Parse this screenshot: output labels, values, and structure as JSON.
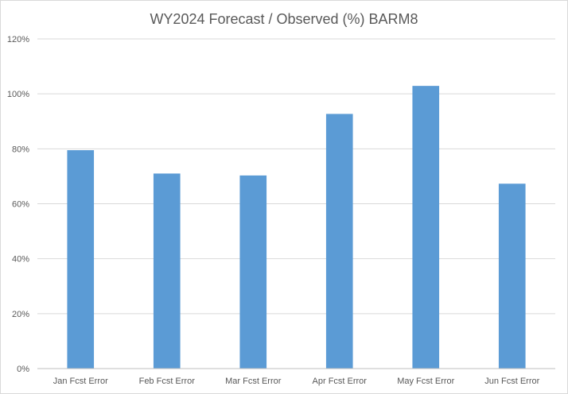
{
  "chart_data": {
    "type": "bar",
    "title": "WY2024 Forecast / Observed (%) BARM8",
    "categories": [
      "Jan Fcst Error",
      "Feb Fcst Error",
      "Mar Fcst Error",
      "Apr Fcst Error",
      "May Fcst Error",
      "Jun Fcst Error"
    ],
    "values": [
      79.5,
      71,
      70.3,
      92.7,
      102.9,
      67.3
    ],
    "ylim": [
      0,
      120
    ],
    "yticks": [
      0,
      20,
      40,
      60,
      80,
      100,
      120
    ],
    "ytick_labels": [
      "0%",
      "20%",
      "40%",
      "60%",
      "80%",
      "100%",
      "120%"
    ],
    "grid": true,
    "legend": "none",
    "bar_color": "#5b9bd5"
  }
}
